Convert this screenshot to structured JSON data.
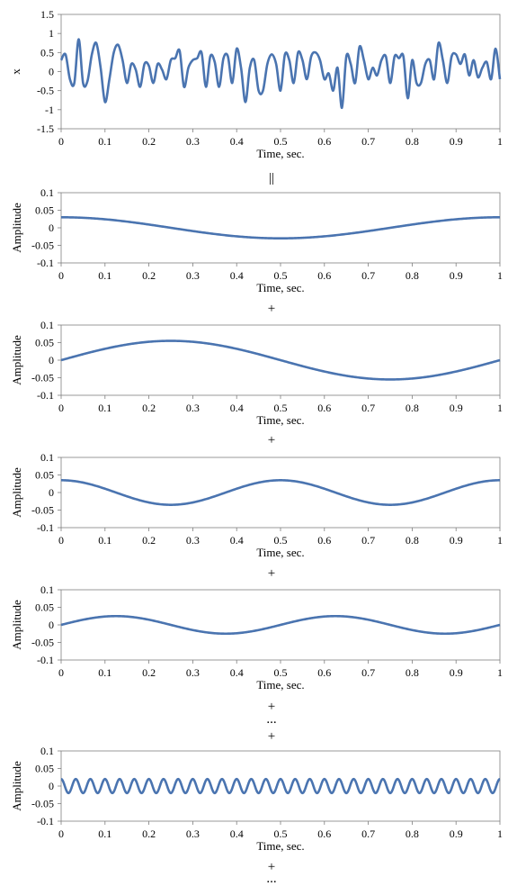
{
  "chart_data": [
    {
      "type": "line",
      "xlabel": "Time, sec.",
      "ylabel": "x",
      "xlim": [
        0,
        1
      ],
      "ylim": [
        -1.5,
        1.5
      ],
      "x_ticks": [
        "0",
        "0.1",
        "0.2",
        "0.3",
        "0.4",
        "0.5",
        "0.6",
        "0.7",
        "0.8",
        "0.9",
        "1"
      ],
      "y_ticks": [
        "1.5",
        "1",
        "0.5",
        "0",
        "-0.5",
        "-1",
        "-1.5"
      ],
      "color": "#4a74b0",
      "series": [
        {
          "x": [
            0,
            0.01,
            0.02,
            0.03,
            0.04,
            0.05,
            0.06,
            0.07,
            0.08,
            0.09,
            0.1,
            0.11,
            0.12,
            0.13,
            0.14,
            0.15,
            0.16,
            0.17,
            0.18,
            0.19,
            0.2,
            0.21,
            0.22,
            0.23,
            0.24,
            0.25,
            0.26,
            0.27,
            0.28,
            0.29,
            0.3,
            0.31,
            0.32,
            0.33,
            0.34,
            0.35,
            0.36,
            0.37,
            0.38,
            0.39,
            0.4,
            0.41,
            0.42,
            0.43,
            0.44,
            0.45,
            0.46,
            0.47,
            0.48,
            0.49,
            0.5,
            0.51,
            0.52,
            0.53,
            0.54,
            0.55,
            0.56,
            0.57,
            0.58,
            0.59,
            0.6,
            0.61,
            0.62,
            0.63,
            0.64,
            0.65,
            0.66,
            0.67,
            0.68,
            0.69,
            0.7,
            0.71,
            0.72,
            0.73,
            0.74,
            0.75,
            0.76,
            0.77,
            0.78,
            0.79,
            0.8,
            0.81,
            0.82,
            0.83,
            0.84,
            0.85,
            0.86,
            0.87,
            0.88,
            0.89,
            0.9,
            0.91,
            0.92,
            0.93,
            0.94,
            0.95,
            0.96,
            0.97,
            0.98,
            0.99,
            1
          ],
          "y": [
            0.3,
            0.45,
            -0.2,
            -0.3,
            0.85,
            -0.3,
            -0.25,
            0.45,
            0.75,
            0.1,
            -0.8,
            -0.2,
            0.5,
            0.7,
            0.3,
            -0.3,
            0.2,
            0.05,
            -0.4,
            0.2,
            0.15,
            -0.3,
            0.2,
            0.05,
            -0.2,
            0.3,
            0.35,
            0.55,
            -0.4,
            0.1,
            0.3,
            0.35,
            0.5,
            -0.4,
            0.4,
            0.25,
            -0.4,
            0.35,
            0.4,
            -0.3,
            0.6,
            0.1,
            -0.8,
            0.1,
            0.3,
            -0.5,
            -0.5,
            0.2,
            0.45,
            0.2,
            -0.5,
            0.45,
            0.3,
            -0.3,
            0.5,
            0.3,
            -0.2,
            0.4,
            0.5,
            0.3,
            -0.2,
            -0.05,
            -0.5,
            0.1,
            -0.95,
            0.4,
            0.2,
            -0.3,
            0.65,
            0.3,
            -0.2,
            0.1,
            -0.1,
            0.3,
            0.4,
            -0.3,
            0.4,
            0.35,
            0.4,
            -0.7,
            0.3,
            -0.3,
            -0.3,
            0.2,
            0.3,
            -0.2,
            0.75,
            0.3,
            -0.3,
            0.4,
            0.45,
            0.2,
            0.45,
            -0.1,
            0.3,
            -0.15,
            0.1,
            0.25,
            -0.2,
            0.6,
            -0.2
          ]
        }
      ]
    },
    {
      "type": "line",
      "xlabel": "Time, sec.",
      "ylabel": "Amplitude",
      "xlim": [
        0,
        1
      ],
      "ylim": [
        -0.1,
        0.1
      ],
      "x_ticks": [
        "0",
        "0.1",
        "0.2",
        "0.3",
        "0.4",
        "0.5",
        "0.6",
        "0.7",
        "0.8",
        "0.9",
        "1"
      ],
      "y_ticks": [
        "0.1",
        "0.05",
        "0",
        "-0.05",
        "-0.1"
      ],
      "color": "#4a74b0",
      "series": [
        {
          "func": "cos",
          "amplitude": 0.03,
          "cycles": 1,
          "phase": 0
        }
      ]
    },
    {
      "type": "line",
      "xlabel": "Time, sec.",
      "ylabel": "Amplitude",
      "xlim": [
        0,
        1
      ],
      "ylim": [
        -0.1,
        0.1
      ],
      "x_ticks": [
        "0",
        "0.1",
        "0.2",
        "0.3",
        "0.4",
        "0.5",
        "0.6",
        "0.7",
        "0.8",
        "0.9",
        "1"
      ],
      "y_ticks": [
        "0.1",
        "0.05",
        "0",
        "-0.05",
        "-0.1"
      ],
      "color": "#4a74b0",
      "series": [
        {
          "func": "sin",
          "amplitude": 0.055,
          "cycles": 1,
          "phase": 0
        }
      ]
    },
    {
      "type": "line",
      "xlabel": "Time, sec.",
      "ylabel": "Amplitude",
      "xlim": [
        0,
        1
      ],
      "ylim": [
        -0.1,
        0.1
      ],
      "x_ticks": [
        "0",
        "0.1",
        "0.2",
        "0.3",
        "0.4",
        "0.5",
        "0.6",
        "0.7",
        "0.8",
        "0.9",
        "1"
      ],
      "y_ticks": [
        "0.1",
        "0.05",
        "0",
        "-0.05",
        "-0.1"
      ],
      "color": "#4a74b0",
      "series": [
        {
          "func": "cos",
          "amplitude": 0.035,
          "cycles": 2,
          "phase": 0
        }
      ]
    },
    {
      "type": "line",
      "xlabel": "Time, sec.",
      "ylabel": "Amplitude",
      "xlim": [
        0,
        1
      ],
      "ylim": [
        -0.1,
        0.1
      ],
      "x_ticks": [
        "0",
        "0.1",
        "0.2",
        "0.3",
        "0.4",
        "0.5",
        "0.6",
        "0.7",
        "0.8",
        "0.9",
        "1"
      ],
      "y_ticks": [
        "0.1",
        "0.05",
        "0",
        "-0.05",
        "-0.1"
      ],
      "color": "#4a74b0",
      "series": [
        {
          "func": "sin",
          "amplitude": 0.025,
          "cycles": 2,
          "phase": 0
        }
      ]
    },
    {
      "type": "line",
      "xlabel": "Time, sec.",
      "ylabel": "Amplitude",
      "xlim": [
        0,
        1
      ],
      "ylim": [
        -0.1,
        0.1
      ],
      "x_ticks": [
        "0",
        "0.1",
        "0.2",
        "0.3",
        "0.4",
        "0.5",
        "0.6",
        "0.7",
        "0.8",
        "0.9",
        "1"
      ],
      "y_ticks": [
        "0.1",
        "0.05",
        "0",
        "-0.05",
        "-0.1"
      ],
      "color": "#4a74b0",
      "series": [
        {
          "func": "cos",
          "amplitude": 0.02,
          "cycles": 30,
          "phase": 0
        }
      ]
    }
  ],
  "separators": [
    "||",
    "+",
    "+",
    "+",
    "+",
    "...",
    "+",
    "+",
    "..."
  ]
}
